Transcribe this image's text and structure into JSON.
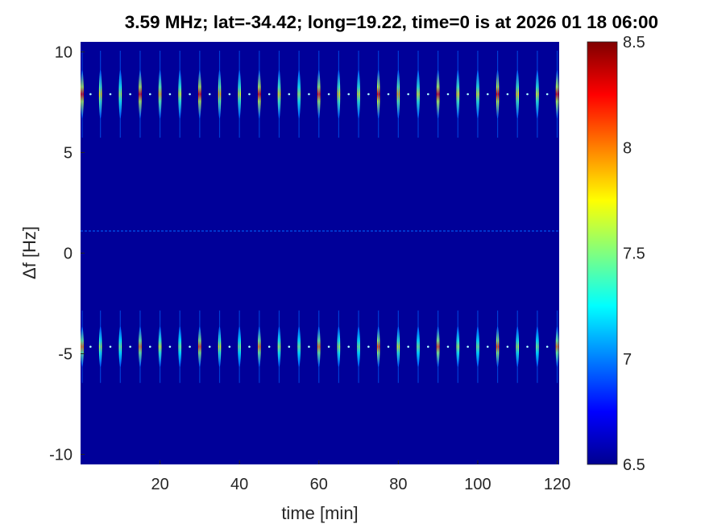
{
  "chart_data": {
    "type": "heatmap",
    "title": "3.59 MHz;  lat=-34.42; long=19.22, time=0 is at 2026 01 18 06:00",
    "xlabel": "time [min]",
    "ylabel": "Δf [Hz]",
    "xlim": [
      0,
      120.5
    ],
    "ylim": [
      -10.5,
      10.5
    ],
    "xticks": [
      20,
      40,
      60,
      80,
      100,
      120
    ],
    "yticks": [
      10,
      5,
      0,
      -5,
      -10
    ],
    "colormap": "jet",
    "clim": [
      6.5,
      8.5
    ],
    "colorbar_ticks": [
      8.5,
      8,
      7.5,
      7,
      6.5
    ],
    "background_value": 6.55,
    "pulse_period_min": 5,
    "pulse_times_min": [
      0,
      5,
      10,
      15,
      20,
      25,
      30,
      35,
      40,
      45,
      50,
      55,
      60,
      65,
      70,
      75,
      80,
      85,
      90,
      95,
      100,
      105,
      110,
      115,
      120
    ],
    "upper_band": {
      "center_hz": 7.9,
      "halfwidth_hz": 1.2,
      "peak_values": [
        8.3,
        7.8,
        7.6,
        8.3,
        7.9,
        7.7,
        8.3,
        7.9,
        7.7,
        8.3,
        7.8,
        7.6,
        8.2,
        7.8,
        7.7,
        8.3,
        7.9,
        7.7,
        8.3,
        7.8,
        7.7,
        8.3,
        7.8,
        7.7,
        8.3
      ]
    },
    "lower_band": {
      "center_hz": -4.65,
      "halfwidth_hz": 1.0,
      "peak_values": [
        8.0,
        7.6,
        7.5,
        8.0,
        7.7,
        7.5,
        8.1,
        7.7,
        7.5,
        8.0,
        7.6,
        7.5,
        8.0,
        7.6,
        7.5,
        8.1,
        7.7,
        7.5,
        8.1,
        7.6,
        7.5,
        8.1,
        7.6,
        7.5,
        8.0
      ]
    },
    "carrier_line": {
      "freq_hz": 1.1,
      "value": 6.95
    },
    "grid": false
  }
}
